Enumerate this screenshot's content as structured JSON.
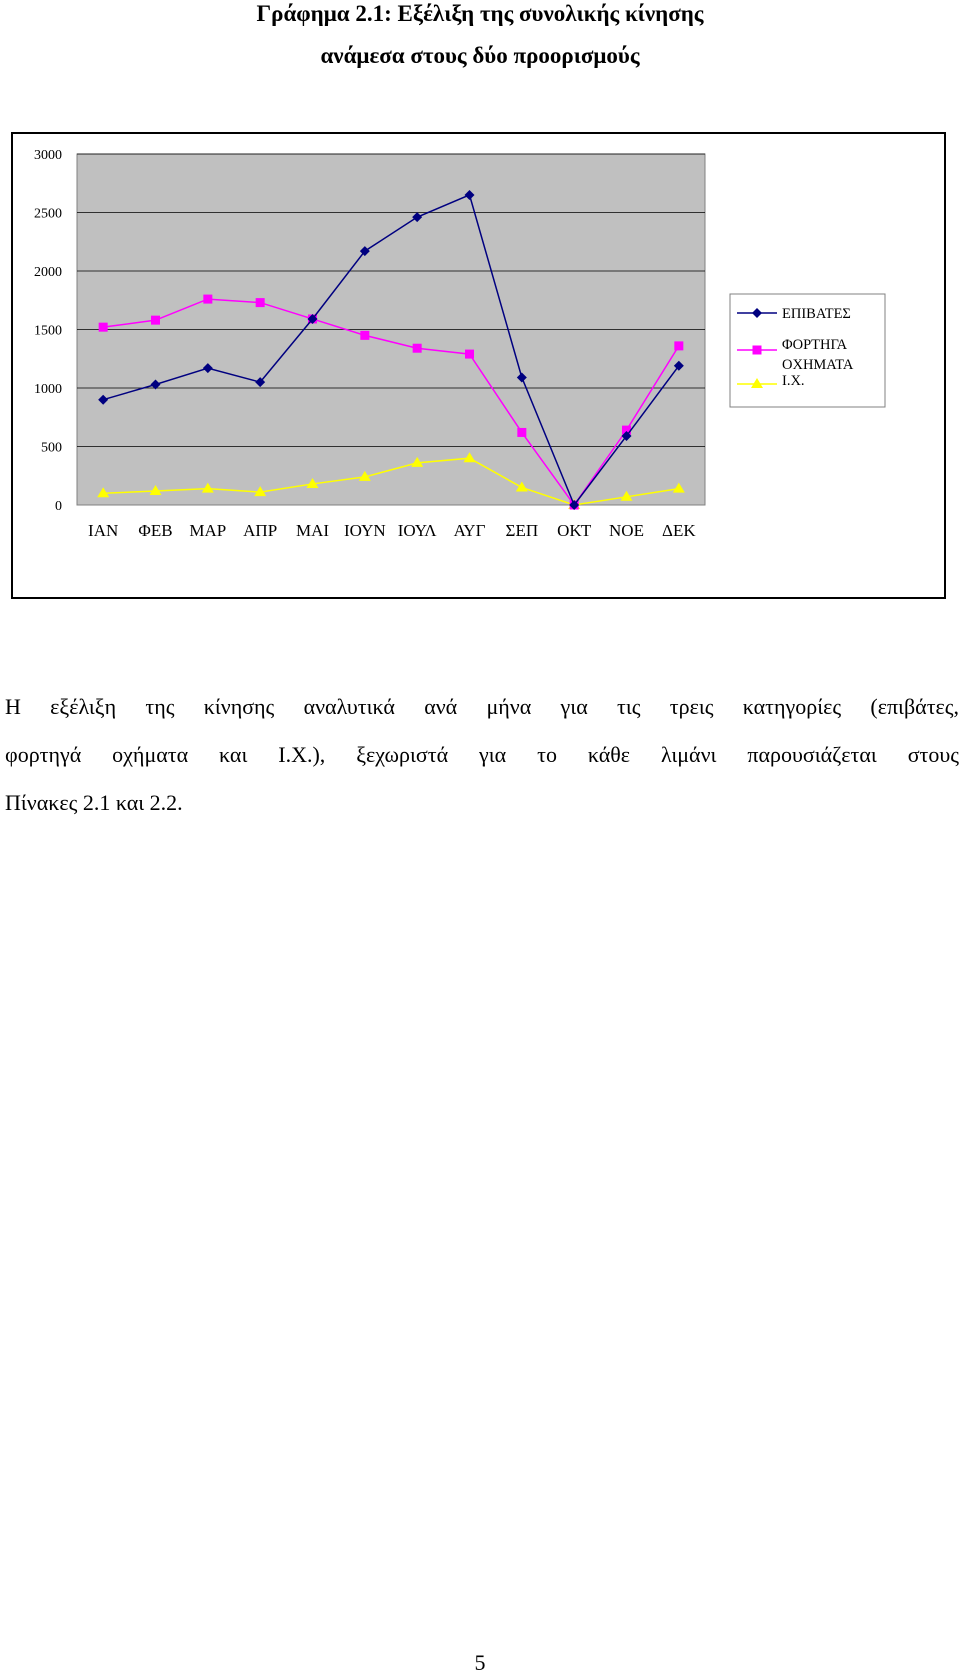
{
  "document": {
    "title_line1": "Γράφημα 2.1: Εξέλιξη της συνολικής κίνησης",
    "title_line2": "ανάμεσα στους δύο προορισμούς",
    "paragraph_line1": "Η εξέλιξη της κίνησης αναλυτικά ανά μήνα για τις τρεις κατηγορίες (επιβάτες,",
    "paragraph_line2": "φορτηγά οχήματα και Ι.Χ.), ξεχωριστά για το κάθε λιμάνι παρουσιάζεται στους",
    "paragraph_line3": "Πίνακες 2.1 και 2.2.",
    "page_number": "5"
  },
  "chart_data": {
    "type": "line",
    "title": "",
    "xlabel": "",
    "ylabel": "",
    "categories": [
      "ΙΑΝ",
      "ΦΕΒ",
      "ΜΑΡ",
      "ΑΠΡ",
      "ΜΑΙ",
      "ΙΟΥΝ",
      "ΙΟΥΛ",
      "ΑΥΓ",
      "ΣΕΠ",
      "ΟΚΤ",
      "ΝΟΕ",
      "ΔΕΚ"
    ],
    "ylim": [
      0,
      3000
    ],
    "yticks": [
      "0",
      "500",
      "1000",
      "1500",
      "2000",
      "2500",
      "3000"
    ],
    "grid": "horizontal",
    "plot_background": "#c0c0c0",
    "legend_position": "right",
    "series": [
      {
        "name": "ΕΠΙΒΑΤΕΣ",
        "color": "#000080",
        "marker": "diamond",
        "values": [
          900,
          1030,
          1170,
          1050,
          1590,
          2170,
          2460,
          2650,
          1090,
          0,
          590,
          1190
        ]
      },
      {
        "name": "ΦΟΡΤΗΓΑ ΟΧΗΜΑΤΑ",
        "color": "#ff00ff",
        "marker": "square",
        "values": [
          1520,
          1580,
          1760,
          1730,
          1590,
          1450,
          1340,
          1290,
          620,
          0,
          640,
          1360
        ]
      },
      {
        "name": "Ι.Χ.",
        "color": "#ffff00",
        "marker": "triangle",
        "values": [
          100,
          120,
          140,
          110,
          180,
          240,
          360,
          400,
          150,
          0,
          70,
          140
        ]
      }
    ]
  }
}
